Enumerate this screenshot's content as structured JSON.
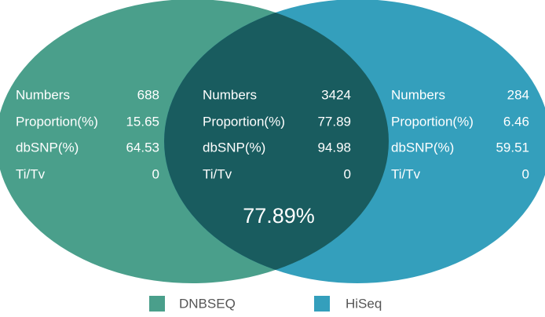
{
  "regions": [
    {
      "rows": [
        {
          "label": "Numbers",
          "value": 688
        },
        {
          "label": "Proportion(%)",
          "value": 15.65
        },
        {
          "label": "dbSNP(%)",
          "value": 64.53
        },
        {
          "label": "Ti/Tv",
          "value": 0
        }
      ]
    },
    {
      "rows": [
        {
          "label": "Numbers",
          "value": 3424
        },
        {
          "label": "Proportion(%)",
          "value": 77.89
        },
        {
          "label": "dbSNP(%)",
          "value": 94.98
        },
        {
          "label": "Ti/Tv",
          "value": 0
        }
      ]
    },
    {
      "rows": [
        {
          "label": "Numbers",
          "value": 284
        },
        {
          "label": "Proportion(%)",
          "value": 6.46
        },
        {
          "label": "dbSNP(%)",
          "value": 59.51
        },
        {
          "label": "Ti/Tv",
          "value": 0
        }
      ]
    }
  ],
  "overlap_label": "77.89%",
  "legend": [
    "DNBSEQ",
    "HiSeq"
  ]
}
